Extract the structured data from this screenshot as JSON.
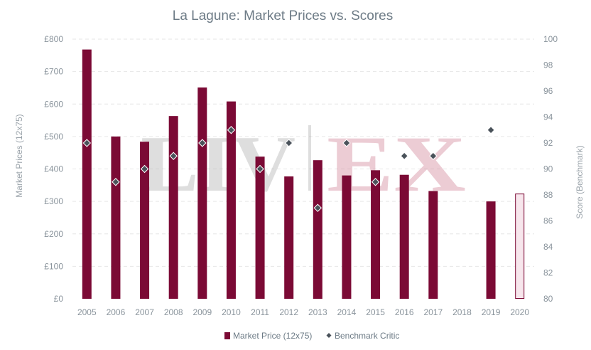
{
  "chart_data": {
    "type": "bar",
    "title": "La Lagune: Market Prices vs. Scores",
    "watermark": "LIV-EX",
    "x": [
      "2005",
      "2006",
      "2007",
      "2008",
      "2009",
      "2010",
      "2011",
      "2012",
      "2013",
      "2014",
      "2015",
      "2016",
      "2017",
      "2018",
      "2019",
      "2020"
    ],
    "series": [
      {
        "name": "Market Price (12x75)",
        "type": "bar",
        "axis": "left",
        "color": "#7b0a35",
        "values": [
          768,
          500,
          484,
          563,
          651,
          608,
          438,
          377,
          427,
          380,
          396,
          382,
          332,
          null,
          300,
          323
        ],
        "highlight_last": {
          "fill": "#f7e6ec",
          "stroke": "#7b0a35"
        }
      },
      {
        "name": "Benchmark Critic",
        "type": "scatter",
        "axis": "right",
        "marker": "diamond",
        "color": "#4a525a",
        "values": [
          92,
          89,
          90,
          91,
          92,
          93,
          90,
          92,
          87,
          92,
          89,
          91,
          91,
          null,
          93,
          null
        ]
      }
    ],
    "ylabel_left": "Market Prices (12x75)",
    "ylabel_right": "Score (Benchmark)",
    "ylim_left": [
      0,
      800
    ],
    "yticks_left": [
      "£0",
      "£100",
      "£200",
      "£300",
      "£400",
      "£500",
      "£600",
      "£700",
      "£800"
    ],
    "ylim_right": [
      80,
      100
    ],
    "yticks_right": [
      "80",
      "82",
      "84",
      "86",
      "88",
      "90",
      "92",
      "94",
      "96",
      "98",
      "100"
    ],
    "legend": [
      "Market Price (12x75)",
      "Benchmark Critic"
    ],
    "legend_position": "bottom",
    "grid": true
  }
}
